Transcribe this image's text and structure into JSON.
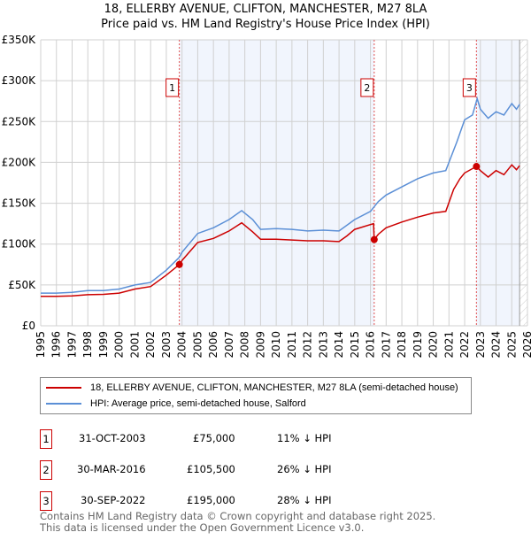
{
  "title_line1": "18, ELLERBY AVENUE, CLIFTON, MANCHESTER, M27 8LA",
  "title_line2": "Price paid vs. HM Land Registry's House Price Index (HPI)",
  "chart_data": {
    "type": "line",
    "xlim": [
      1995,
      2026
    ],
    "ylim": [
      0,
      350000
    ],
    "yticks": [
      0,
      50000,
      100000,
      150000,
      200000,
      250000,
      300000,
      350000
    ],
    "ytick_labels": [
      "£0",
      "£50K",
      "£100K",
      "£150K",
      "£200K",
      "£250K",
      "£300K",
      "£350K"
    ],
    "xticks": [
      1995,
      1996,
      1997,
      1998,
      1999,
      2000,
      2001,
      2002,
      2003,
      2004,
      2005,
      2006,
      2007,
      2008,
      2009,
      2010,
      2011,
      2012,
      2013,
      2014,
      2015,
      2016,
      2017,
      2018,
      2019,
      2020,
      2021,
      2022,
      2023,
      2024,
      2025,
      2026
    ],
    "grid": true,
    "shaded_ranges": [
      [
        2003.83,
        2016.24
      ],
      [
        2022.75,
        2025.5
      ]
    ],
    "hatched_from": 2025.5,
    "series": [
      {
        "name": "18, ELLERBY AVENUE, CLIFTON, MANCHESTER, M27 8LA (semi-detached house)",
        "color": "#cc0000",
        "x": [
          1995,
          1996,
          1997,
          1998,
          1999,
          2000,
          2001,
          2002,
          2003,
          2003.83,
          2004,
          2005,
          2006,
          2007,
          2007.8,
          2008.5,
          2009,
          2010,
          2011,
          2012,
          2013,
          2014,
          2014.5,
          2015,
          2016.2,
          2016.24,
          2016.5,
          2017,
          2018,
          2019,
          2020,
          2020.8,
          2021.3,
          2021.7,
          2022,
          2022.75,
          2023,
          2023.5,
          2024,
          2024.5,
          2025,
          2025.3,
          2025.5
        ],
        "y": [
          36000,
          36000,
          36500,
          38000,
          38500,
          40000,
          45000,
          48000,
          62000,
          75000,
          80000,
          102000,
          107000,
          116000,
          126000,
          115000,
          106000,
          106000,
          105000,
          104000,
          104000,
          103000,
          110000,
          118000,
          125000,
          105500,
          112000,
          120000,
          127000,
          133000,
          138000,
          140000,
          167000,
          180000,
          187000,
          195000,
          190000,
          182000,
          190000,
          185000,
          197000,
          191000,
          196000
        ]
      },
      {
        "name": "HPI: Average price, semi-detached house, Salford",
        "color": "#5b8fd6",
        "x": [
          1995,
          1996,
          1997,
          1998,
          1999,
          2000,
          2001,
          2002,
          2003,
          2003.83,
          2004,
          2005,
          2006,
          2007,
          2007.8,
          2008.5,
          2009,
          2010,
          2011,
          2012,
          2013,
          2014,
          2015,
          2016,
          2016.5,
          2017,
          2018,
          2019,
          2020,
          2020.8,
          2021,
          2021.5,
          2022,
          2022.5,
          2022.8,
          2023,
          2023.5,
          2024,
          2024.5,
          2025,
          2025.3,
          2025.5
        ],
        "y": [
          40000,
          40000,
          41000,
          43000,
          43000,
          45000,
          50000,
          53000,
          68000,
          84000,
          90000,
          113000,
          120000,
          130000,
          141000,
          130000,
          118000,
          119000,
          118000,
          116000,
          117000,
          116000,
          130000,
          140000,
          152000,
          160000,
          170000,
          180000,
          187000,
          190000,
          200000,
          225000,
          252000,
          258000,
          278000,
          265000,
          254000,
          262000,
          258000,
          272000,
          265000,
          271000
        ]
      }
    ],
    "sales": [
      {
        "id": "1",
        "x": 2003.83,
        "price": 75000
      },
      {
        "id": "2",
        "x": 2016.24,
        "price": 105500
      },
      {
        "id": "3",
        "x": 2022.75,
        "price": 195000
      }
    ]
  },
  "legend": {
    "property": "18, ELLERBY AVENUE, CLIFTON, MANCHESTER, M27 8LA (semi-detached house)",
    "hpi": "HPI: Average price, semi-detached house, Salford"
  },
  "sales_table": [
    {
      "id": "1",
      "date": "31-OCT-2003",
      "price": "£75,000",
      "diff": "11% ↓ HPI"
    },
    {
      "id": "2",
      "date": "30-MAR-2016",
      "price": "£105,500",
      "diff": "26% ↓ HPI"
    },
    {
      "id": "3",
      "date": "30-SEP-2022",
      "price": "£195,000",
      "diff": "28% ↓ HPI"
    }
  ],
  "footer_line1": "Contains HM Land Registry data © Crown copyright and database right 2025.",
  "footer_line2": "This data is licensed under the Open Government Licence v3.0."
}
